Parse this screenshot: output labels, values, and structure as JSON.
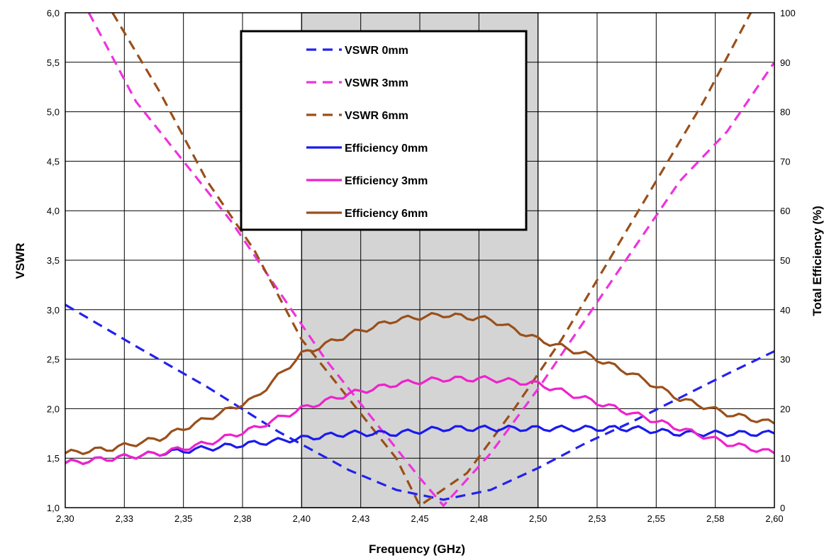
{
  "chart_data": {
    "type": "line",
    "xlabel": "Frequency (GHz)",
    "ylabel": "VSWR",
    "y2label": "Total Efficiency (%)",
    "xlim": [
      2.3,
      2.6
    ],
    "ylim": [
      1.0,
      6.0
    ],
    "y2lim": [
      0,
      100
    ],
    "x_ticks": [
      "2,30",
      "2,33",
      "2,35",
      "2,38",
      "2,40",
      "2,43",
      "2,45",
      "2,48",
      "2,50",
      "2,53",
      "2,55",
      "2,58",
      "2,60"
    ],
    "y_ticks": [
      "1,0",
      "1,5",
      "2,0",
      "2,5",
      "3,0",
      "3,5",
      "4,0",
      "4,5",
      "5,0",
      "5,5",
      "6,0"
    ],
    "y2_ticks": [
      "0",
      "10",
      "20",
      "30",
      "40",
      "50",
      "60",
      "70",
      "80",
      "90",
      "100"
    ],
    "grid": true,
    "shaded_band": [
      2.4,
      2.5
    ],
    "legend_position": "top-center",
    "series": [
      {
        "name": "VSWR 0mm",
        "axis": "left",
        "style": "dashed",
        "color": "#2222ee",
        "x": [
          2.3,
          2.33,
          2.36,
          2.39,
          2.42,
          2.44,
          2.46,
          2.48,
          2.5,
          2.52,
          2.54,
          2.56,
          2.58,
          2.6
        ],
        "values": [
          3.05,
          2.63,
          2.22,
          1.77,
          1.38,
          1.18,
          1.08,
          1.18,
          1.4,
          1.65,
          1.87,
          2.11,
          2.35,
          2.58
        ]
      },
      {
        "name": "VSWR 3mm",
        "axis": "left",
        "style": "dashed",
        "color": "#ee33dd",
        "x": [
          2.31,
          2.33,
          2.35,
          2.37,
          2.39,
          2.41,
          2.43,
          2.45,
          2.46,
          2.48,
          2.5,
          2.52,
          2.54,
          2.56,
          2.58,
          2.6
        ],
        "values": [
          6.0,
          5.1,
          4.5,
          3.9,
          3.2,
          2.5,
          1.9,
          1.3,
          1.02,
          1.55,
          2.2,
          2.9,
          3.6,
          4.3,
          4.8,
          5.5
        ]
      },
      {
        "name": "VSWR 6mm",
        "axis": "left",
        "style": "dashed",
        "color": "#9a4f1a",
        "x": [
          2.32,
          2.34,
          2.36,
          2.38,
          2.4,
          2.42,
          2.44,
          2.45,
          2.47,
          2.49,
          2.51,
          2.53,
          2.55,
          2.57,
          2.59
        ],
        "values": [
          6.0,
          5.2,
          4.3,
          3.6,
          2.7,
          2.1,
          1.5,
          1.02,
          1.35,
          2.0,
          2.7,
          3.5,
          4.3,
          5.1,
          6.0
        ]
      },
      {
        "name": "Efficiency 0mm",
        "axis": "right",
        "style": "solid",
        "color": "#1a1aee",
        "x": [
          2.3,
          2.32,
          2.34,
          2.36,
          2.38,
          2.4,
          2.42,
          2.44,
          2.46,
          2.48,
          2.5,
          2.52,
          2.54,
          2.56,
          2.58,
          2.6
        ],
        "values": [
          9,
          10,
          11,
          12,
          13,
          14,
          15,
          15,
          16,
          16,
          16,
          16,
          16,
          15,
          15,
          15
        ]
      },
      {
        "name": "Efficiency 3mm",
        "axis": "right",
        "style": "solid",
        "color": "#ee22cc",
        "x": [
          2.3,
          2.32,
          2.34,
          2.36,
          2.38,
          2.4,
          2.42,
          2.44,
          2.46,
          2.48,
          2.5,
          2.52,
          2.54,
          2.56,
          2.58,
          2.6
        ],
        "values": [
          9,
          10,
          11,
          13,
          16,
          20,
          23,
          25,
          26,
          26,
          25,
          22,
          19,
          16,
          13,
          11
        ]
      },
      {
        "name": "Efficiency 6mm",
        "axis": "right",
        "style": "solid",
        "color": "#9a4f1a",
        "x": [
          2.3,
          2.32,
          2.34,
          2.36,
          2.38,
          2.4,
          2.42,
          2.44,
          2.46,
          2.48,
          2.5,
          2.52,
          2.54,
          2.56,
          2.58,
          2.6
        ],
        "values": [
          11,
          12,
          14,
          18,
          22,
          31,
          35,
          38,
          39,
          38,
          34,
          31,
          27,
          22,
          19,
          17
        ]
      }
    ]
  }
}
